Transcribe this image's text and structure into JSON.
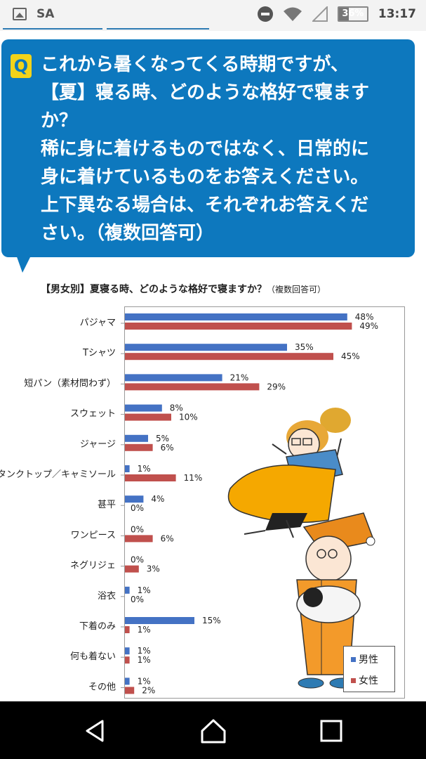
{
  "status_bar": {
    "app_label": "SA",
    "battery": "36%",
    "battery_level": 0.36,
    "time": "13:17",
    "icons": [
      "image-icon",
      "do-not-disturb-icon",
      "wifi-icon",
      "signal-icon",
      "battery-icon"
    ]
  },
  "question": {
    "badge": "Q",
    "lines": [
      "これから暑くなってくる時期ですが、",
      "【夏】寝る時、どのような格好で寝ます",
      "か？",
      "稀に身に着けるものではなく、日常的に",
      "身に着けているものをお答えください。",
      "上下異なる場合は、それぞれお答えくだ",
      "さい。（複数回答可）"
    ]
  },
  "chart_data": {
    "type": "bar",
    "orientation": "horizontal",
    "title_prefix": "【男女別】",
    "title": "夏寝る時、どのような格好で寝ますか？",
    "title_note": "（複数回答可）",
    "categories": [
      "パジャマ",
      "Tシャツ",
      "短パン（素材問わず）",
      "スウェット",
      "ジャージ",
      "タンクトップ／キャミソール",
      "甚平",
      "ワンピース",
      "ネグリジェ",
      "浴衣",
      "下着のみ",
      "何も着ない",
      "その他"
    ],
    "series": [
      {
        "name": "男性",
        "color": "#4472c4",
        "values": [
          48,
          35,
          21,
          8,
          5,
          1,
          4,
          0,
          0,
          1,
          15,
          1,
          1
        ]
      },
      {
        "name": "女性",
        "color": "#c0504d",
        "values": [
          49,
          45,
          29,
          10,
          6,
          11,
          0,
          6,
          3,
          0,
          1,
          1,
          2
        ]
      }
    ],
    "unit": "%",
    "xlim": [
      0,
      60
    ],
    "legend_position": "bottom-right"
  },
  "colors": {
    "question_bg": "#0d78be",
    "badge": "#f2d31a"
  },
  "nav_bar": {
    "icons": [
      "back-icon",
      "home-icon",
      "recents-icon"
    ]
  }
}
